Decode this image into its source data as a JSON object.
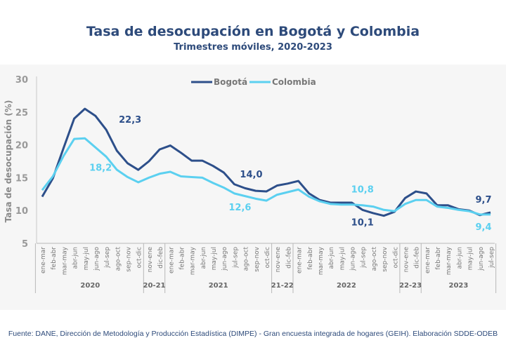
{
  "title": "Tasa de desocupación en Bogotá y Colombia",
  "subtitle": "Trimestres móviles, 2020-2023",
  "footer": "Fuente: DANE, Dirección de Metodología y Producción Estadística (DIMPE) - Gran encuesta integrada de hogares (GEIH). Elaboración SDDE-ODEB",
  "chart_data": {
    "type": "line",
    "ylabel": "Tasa de desocupación (%)",
    "ylim": [
      5,
      30
    ],
    "yticks": [
      5,
      10,
      15,
      20,
      25,
      30
    ],
    "legend": "top-center",
    "grid": false,
    "groups": [
      {
        "label": "2020",
        "count": 10
      },
      {
        "label": "20-21",
        "count": 2
      },
      {
        "label": "2021",
        "count": 10
      },
      {
        "label": "21-22",
        "count": 2
      },
      {
        "label": "2022",
        "count": 10
      },
      {
        "label": "22-23",
        "count": 2
      },
      {
        "label": "2023",
        "count": 7
      }
    ],
    "categories": [
      "ene-mar",
      "feb-abr",
      "mar-may",
      "abr-jun",
      "may-jul",
      "jun-ago",
      "jul-sep",
      "ago-oct",
      "sep-nov",
      "oct-dic",
      "nov-ene",
      "dic-feb",
      "ene-mar",
      "feb-abr",
      "mar-may",
      "abr-jun",
      "may-jul",
      "jun-ago",
      "jul-sep",
      "ago-oct",
      "sep-nov",
      "oct-dic",
      "nov-ene",
      "dic-feb",
      "ene-mar",
      "feb-abr",
      "mar-may",
      "abr-jun",
      "may-jul",
      "jun-ago",
      "jul-sep",
      "ago-oct",
      "sep-nov",
      "oct-dic",
      "nov-ene",
      "dic-feb",
      "ene-mar",
      "feb-abr",
      "mar-may",
      "abr-jun",
      "may-jul",
      "jun-ago",
      "jul-sep"
    ],
    "series": [
      {
        "name": "Bogotá",
        "color": "#2d4f8a",
        "values": [
          12.1,
          14.9,
          19.5,
          24.0,
          25.5,
          24.4,
          22.3,
          19.1,
          17.2,
          16.2,
          17.5,
          19.3,
          19.9,
          18.8,
          17.6,
          17.6,
          16.8,
          15.8,
          14.0,
          13.4,
          13.0,
          12.9,
          13.8,
          14.1,
          14.5,
          12.6,
          11.6,
          11.2,
          11.2,
          11.2,
          10.1,
          9.6,
          9.2,
          9.8,
          11.9,
          12.9,
          12.6,
          10.8,
          10.8,
          10.2,
          10.0,
          9.3,
          9.7
        ]
      },
      {
        "name": "Colombia",
        "color": "#5bd0f0",
        "values": [
          13.1,
          15.2,
          18.3,
          20.9,
          21.0,
          19.6,
          18.2,
          16.2,
          15.1,
          14.3,
          15.0,
          15.6,
          15.9,
          15.2,
          15.1,
          15.0,
          14.2,
          13.5,
          12.6,
          12.2,
          11.8,
          11.5,
          12.4,
          12.8,
          13.2,
          12.1,
          11.4,
          11.0,
          10.9,
          10.9,
          10.8,
          10.6,
          10.1,
          9.9,
          11.0,
          11.6,
          11.6,
          10.6,
          10.4,
          10.1,
          9.9,
          9.4,
          9.4
        ]
      }
    ],
    "annotations": [
      {
        "series": 0,
        "index": 6,
        "text": "22,3"
      },
      {
        "series": 1,
        "index": 6,
        "text": "18,2"
      },
      {
        "series": 0,
        "index": 18,
        "text": "14,0"
      },
      {
        "series": 1,
        "index": 18,
        "text": "12,6"
      },
      {
        "series": 1,
        "index": 30,
        "text": "10,8"
      },
      {
        "series": 0,
        "index": 30,
        "text": "10,1"
      },
      {
        "series": 0,
        "index": 42,
        "text": "9,7"
      },
      {
        "series": 1,
        "index": 42,
        "text": "9,4"
      }
    ]
  }
}
